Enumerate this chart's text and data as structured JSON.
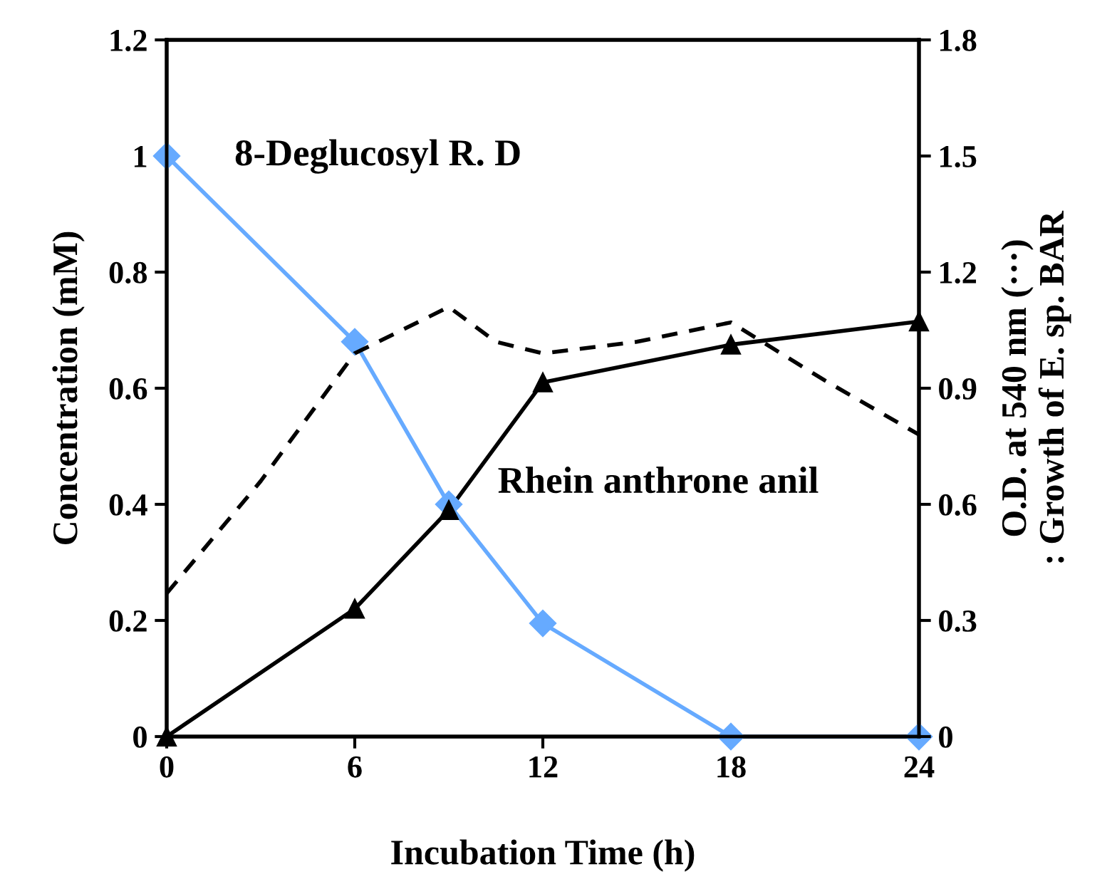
{
  "chart_data": {
    "type": "line",
    "xlabel": "Incubation Time (h)",
    "ylabel": "Concentration (mM)",
    "y2label": "O.D. at 540 nm (···)\n: Growth of E. sp. BAR",
    "xlim": [
      0,
      24
    ],
    "xticks": [
      0,
      6,
      12,
      18,
      24
    ],
    "ylim": [
      0,
      1.2
    ],
    "yticks": [
      0,
      0.2,
      0.4,
      0.6,
      0.8,
      1,
      1.2
    ],
    "y2lim": [
      0,
      1.8
    ],
    "y2ticks": [
      0,
      0.3,
      0.6,
      0.9,
      1.2,
      1.5,
      1.8
    ],
    "grid": false,
    "legend": false,
    "series": [
      {
        "name": "8-Deglucosyl R. D",
        "color": "#66aaff",
        "marker": "diamond",
        "line_style": "solid",
        "x": [
          0,
          6,
          9,
          12,
          18,
          24
        ],
        "values": [
          1.0,
          0.68,
          0.4,
          0.195,
          0,
          0
        ]
      },
      {
        "name": "Rhein anthrone anil",
        "color": "#000000",
        "marker": "triangle",
        "line_style": "solid",
        "x": [
          0,
          6,
          9,
          12,
          18,
          24
        ],
        "values": [
          0,
          0.22,
          0.39,
          0.61,
          0.675,
          0.715
        ]
      },
      {
        "color": "#000000",
        "marker": "none",
        "line_style": "dashed",
        "axis": "y2",
        "x": [
          0,
          3,
          6,
          9,
          10.5,
          12,
          15,
          18,
          21,
          24
        ],
        "values": [
          0.37,
          0.66,
          0.99,
          1.11,
          1.02,
          0.99,
          1.02,
          1.07,
          0.92,
          0.78
        ]
      }
    ]
  }
}
